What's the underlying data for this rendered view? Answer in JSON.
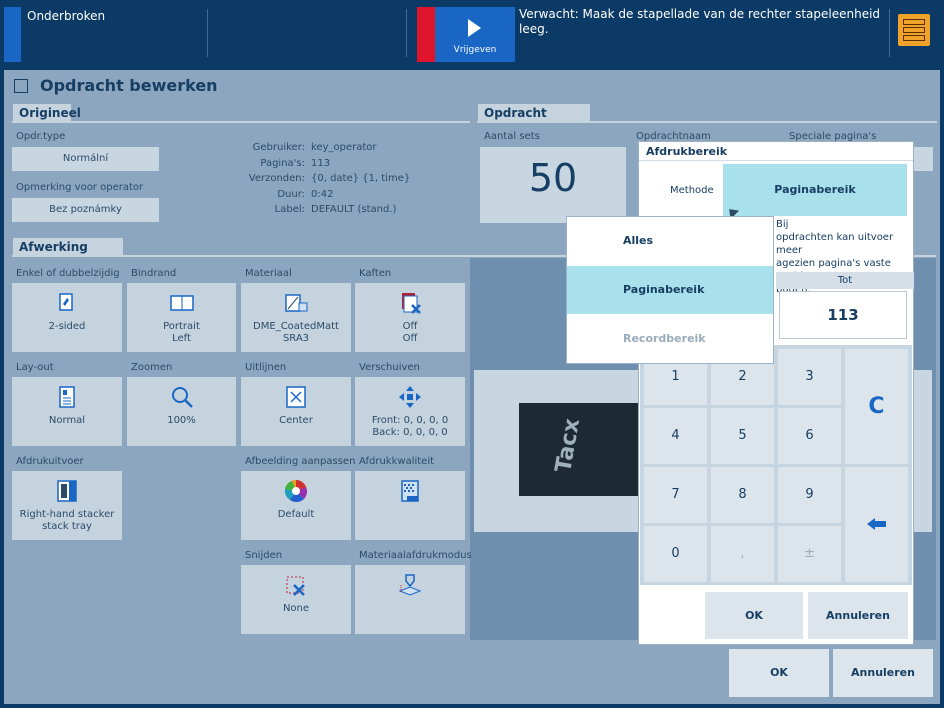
{
  "topbar": {
    "status": "Onderbroken",
    "release_label": "Vrijgeven",
    "alert": "Verwacht: Maak de stapellade van de rechter stapeleenheid leeg.",
    "tray_icon": "stacker-tray-icon"
  },
  "title": "Opdracht bewerken",
  "origineel": {
    "tab": "Origineel",
    "job_type_label": "Opdr.type",
    "job_type_value": "Normální",
    "operator_note_label": "Opmerking voor operator",
    "operator_note_value": "Bez poznámky",
    "info": [
      {
        "k": "Gebruiker:",
        "v": "key_operator"
      },
      {
        "k": "Pagina's:",
        "v": "113"
      },
      {
        "k": "Verzonden:",
        "v": "{0, date} {1, time}"
      },
      {
        "k": "Duur:",
        "v": "0:42"
      },
      {
        "k": "Label:",
        "v": "DEFAULT (stand.)"
      }
    ]
  },
  "opdracht": {
    "tab": "Opdracht",
    "sets_label": "Aantal sets",
    "sets_value": "50",
    "name_label": "Opdrachtnaam",
    "special_label": "Speciale pagina's"
  },
  "afwerking": {
    "tab": "Afwerking",
    "tiles": [
      {
        "label": "Enkel of dubbelzijdig",
        "value": "2-sided",
        "icon": "duplex-icon"
      },
      {
        "label": "Bindrand",
        "value": "Portrait\nLeft",
        "icon": "binding-edge-icon"
      },
      {
        "label": "Materiaal",
        "value": "DME_CoatedMatt\nSRA3",
        "icon": "media-icon"
      },
      {
        "label": "Kaften",
        "value": "Off\nOff",
        "icon": "covers-icon"
      },
      {
        "label": "Lay-out",
        "value": "Normal",
        "icon": "layout-icon"
      },
      {
        "label": "Zoomen",
        "value": "100%",
        "icon": "zoom-icon"
      },
      {
        "label": "Uitlijnen",
        "value": "Center",
        "icon": "align-icon"
      },
      {
        "label": "Verschuiven",
        "value": "Front: 0, 0, 0, 0\nBack: 0, 0, 0, 0",
        "icon": "shift-icon"
      },
      {
        "label": "Afdrukuitvoer",
        "value": "Right-hand stacker\nstack tray",
        "icon": "output-icon"
      },
      {
        "label": "Afbeelding aanpassen",
        "value": "Default",
        "icon": "color-wheel-icon"
      },
      {
        "label": "Afdrukkwaliteit",
        "value": "",
        "icon": "print-quality-icon"
      },
      {
        "label": "Snijden",
        "value": "None",
        "icon": "trim-icon"
      },
      {
        "label": "Materiaalafdrukmodus",
        "value": "",
        "icon": "media-print-mode-icon"
      }
    ]
  },
  "preview": {
    "brand": "Tacx"
  },
  "footer": {
    "ok": "OK",
    "cancel": "Annuleren"
  },
  "dialog": {
    "title": "Afdrukbereik",
    "method_label": "Methode",
    "method_value": "Paginabereik",
    "info_text": "Bij\nopdrachten kan uitvoer meer\nagezien pagina's vaste positie\nbuden.",
    "to_label": "Tot",
    "to_value": "113",
    "keys": [
      "1",
      "2",
      "3",
      "4",
      "5",
      "6",
      "7",
      "8",
      "9",
      "0",
      ",",
      "±"
    ],
    "clear": "C",
    "ok": "OK",
    "cancel": "Annuleren"
  },
  "dropdown": {
    "options": [
      "Alles",
      "Paginabereik",
      "Recordbereik"
    ],
    "selected": "Paginabereik"
  }
}
